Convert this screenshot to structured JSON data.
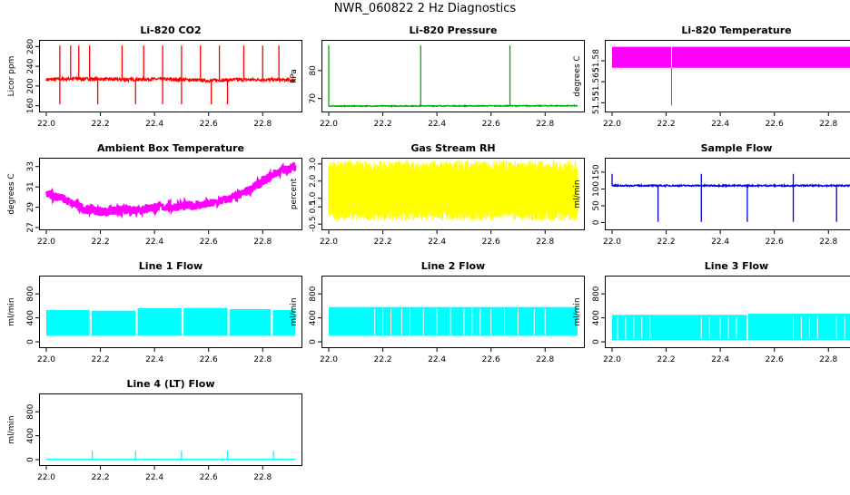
{
  "page": {
    "title": "NWR_060822  2 Hz Diagnostics"
  },
  "chart_data": [
    {
      "type": "line",
      "title": "Li-820 CO2",
      "ylabel": "Licor ppm",
      "color": "#ff0000",
      "xlim": [
        22.0,
        22.92
      ],
      "ylim": [
        152,
        288
      ],
      "xticks": [
        22.0,
        22.2,
        22.4,
        22.6,
        22.8
      ],
      "yticks": [
        160,
        200,
        240,
        280
      ],
      "xticklabels": [
        "22.0",
        "22.2",
        "22.4",
        "22.6",
        "22.8"
      ],
      "yticklabels": [
        "160",
        "200",
        "240",
        "280"
      ],
      "series": [
        {
          "name": "CO2",
          "baseline_points": [
            [
              22.0,
              213
            ],
            [
              22.1,
              215
            ],
            [
              22.2,
              214
            ],
            [
              22.3,
              213
            ],
            [
              22.4,
              214
            ],
            [
              22.5,
              213
            ],
            [
              22.6,
              211
            ],
            [
              22.7,
              213
            ],
            [
              22.8,
              213
            ],
            [
              22.9,
              212
            ]
          ],
          "noise": 3,
          "spikes_up": [
            22.05,
            22.09,
            22.12,
            22.16,
            22.28,
            22.36,
            22.43,
            22.5,
            22.57,
            22.64,
            22.73,
            22.8,
            22.86
          ],
          "spike_up_value": 282,
          "spikes_down": [
            22.05,
            22.19,
            22.33,
            22.43,
            22.5,
            22.61,
            22.67
          ],
          "spike_down_value": 163
        }
      ]
    },
    {
      "type": "line",
      "title": "Li-820 Pressure",
      "ylabel": "kPa",
      "color": "#00aa00",
      "xlim": [
        22.0,
        22.92
      ],
      "ylim": [
        66,
        90
      ],
      "xticks": [
        22.0,
        22.2,
        22.4,
        22.6,
        22.8
      ],
      "yticks": [
        70,
        80
      ],
      "xticklabels": [
        "22.0",
        "22.2",
        "22.4",
        "22.6",
        "22.8"
      ],
      "yticklabels": [
        "70",
        "80"
      ],
      "series": [
        {
          "name": "Pressure",
          "baseline_points": [
            [
              22.0,
              67.3
            ],
            [
              22.92,
              67.4
            ]
          ],
          "noise": 0.15,
          "spikes_up": [
            22.0,
            22.34,
            22.67
          ],
          "spike_up_value": 89
        }
      ]
    },
    {
      "type": "area",
      "title": "Li-820 Temperature",
      "ylabel": "degrees C",
      "color": "#ff00ff",
      "xlim": [
        22.0,
        22.92
      ],
      "ylim": [
        51.545,
        51.593
      ],
      "xticks": [
        22.0,
        22.2,
        22.4,
        22.6,
        22.8
      ],
      "yticks": [
        51.55,
        51.565,
        51.58
      ],
      "xticklabels": [
        "22.0",
        "22.2",
        "22.4",
        "22.6",
        "22.8"
      ],
      "yticklabels": [
        "51.55",
        "51.565",
        "51.58"
      ],
      "series": [
        {
          "name": "Temperature",
          "band": [
            51.575,
            51.59
          ],
          "gap_at": 22.22,
          "spike_down_at": 22.22,
          "spike_down_value": 51.548
        }
      ]
    },
    {
      "type": "line",
      "title": "Ambient Box Temperature",
      "ylabel": "degrees C",
      "color": "#ff00ff",
      "xlim": [
        22.0,
        22.92
      ],
      "ylim": [
        27,
        33.6
      ],
      "xticks": [
        22.0,
        22.2,
        22.4,
        22.6,
        22.8
      ],
      "yticks": [
        27,
        29,
        31,
        33
      ],
      "xticklabels": [
        "22.0",
        "22.2",
        "22.4",
        "22.6",
        "22.8"
      ],
      "yticklabels": [
        "27",
        "29",
        "31",
        "33"
      ],
      "series": [
        {
          "name": "Ambient",
          "baseline_points": [
            [
              22.0,
              30.3
            ],
            [
              22.05,
              30.0
            ],
            [
              22.1,
              29.3
            ],
            [
              22.15,
              28.8
            ],
            [
              22.2,
              28.6
            ],
            [
              22.3,
              28.7
            ],
            [
              22.4,
              29.0
            ],
            [
              22.5,
              29.1
            ],
            [
              22.6,
              29.3
            ],
            [
              22.7,
              30.0
            ],
            [
              22.75,
              30.7
            ],
            [
              22.8,
              31.5
            ],
            [
              22.85,
              32.4
            ],
            [
              22.92,
              33.0
            ]
          ],
          "noise": 0.45
        }
      ]
    },
    {
      "type": "area",
      "title": "Gas Stream RH",
      "ylabel": "percent",
      "color": "#ffff00",
      "xlim": [
        22.0,
        22.92
      ],
      "ylim": [
        -0.7,
        3.2
      ],
      "xticks": [
        22.0,
        22.2,
        22.4,
        22.6,
        22.8
      ],
      "yticks": [
        -0.5,
        0.5,
        1.0,
        2.0,
        3.0
      ],
      "xticklabels": [
        "22.0",
        "22.2",
        "22.4",
        "22.6",
        "22.8"
      ],
      "yticklabels": [
        "-0.5",
        "0.5",
        "1.0",
        "2.0",
        "3.0"
      ],
      "series": [
        {
          "name": "RH",
          "band": [
            0.3,
            2.6
          ],
          "noise": 0.5
        }
      ]
    },
    {
      "type": "line",
      "title": "Sample Flow",
      "ylabel": "ml/min",
      "color": "#0000dd",
      "xlim": [
        22.0,
        22.92
      ],
      "ylim": [
        -15,
        185
      ],
      "xticks": [
        22.0,
        22.2,
        22.4,
        22.6,
        22.8
      ],
      "yticks": [
        0,
        50,
        100,
        150
      ],
      "xticklabels": [
        "22.0",
        "22.2",
        "22.4",
        "22.6",
        "22.8"
      ],
      "yticklabels": [
        "0",
        "50",
        "100",
        "150"
      ],
      "series": [
        {
          "name": "Sample Flow",
          "baseline_points": [
            [
              22.0,
              110
            ],
            [
              22.92,
              110
            ]
          ],
          "noise": 2,
          "spikes_down": [
            22.17,
            22.33,
            22.5,
            22.67,
            22.83
          ],
          "spike_down_value": 2,
          "spikes_up": [
            22.0,
            22.33,
            22.67
          ],
          "spike_up_value": 145
        }
      ]
    },
    {
      "type": "area",
      "title": "Line 1 Flow",
      "ylabel": "ml/min",
      "color": "#00ffff",
      "xlim": [
        22.0,
        22.92
      ],
      "ylim": [
        -60,
        1060
      ],
      "xticks": [
        22.0,
        22.2,
        22.4,
        22.6,
        22.8
      ],
      "yticks": [
        0,
        400,
        800
      ],
      "xticklabels": [
        "22.0",
        "22.2",
        "22.4",
        "22.6",
        "22.8"
      ],
      "yticklabels": [
        "0",
        "400",
        "800"
      ],
      "series": [
        {
          "name": "Line 1",
          "segments": [
            [
              22.0,
              22.16,
              530
            ],
            [
              22.165,
              22.33,
              520
            ],
            [
              22.335,
              22.5,
              560
            ],
            [
              22.505,
              22.67,
              565
            ],
            [
              22.675,
              22.83,
              545
            ],
            [
              22.835,
              22.92,
              530
            ]
          ],
          "floor": 100
        }
      ]
    },
    {
      "type": "area",
      "title": "Line 2 Flow",
      "ylabel": "ml/min",
      "color": "#00ffff",
      "xlim": [
        22.0,
        22.92
      ],
      "ylim": [
        -60,
        1060
      ],
      "xticks": [
        22.0,
        22.2,
        22.4,
        22.6,
        22.8
      ],
      "yticks": [
        0,
        400,
        800
      ],
      "xticklabels": [
        "22.0",
        "22.2",
        "22.4",
        "22.6",
        "22.8"
      ],
      "yticklabels": [
        "0",
        "400",
        "800"
      ],
      "series": [
        {
          "name": "Line 2",
          "segments": [
            [
              22.0,
              22.92,
              580
            ]
          ],
          "floor": 100,
          "dips": [
            22.17,
            22.2,
            22.23,
            22.27,
            22.3,
            22.35,
            22.4,
            22.45,
            22.5,
            22.53,
            22.56,
            22.6,
            22.65,
            22.7,
            22.76,
            22.8
          ]
        }
      ]
    },
    {
      "type": "area",
      "title": "Line 3 Flow",
      "ylabel": "ml/min",
      "color": "#00ffff",
      "xlim": [
        22.0,
        22.92
      ],
      "ylim": [
        -60,
        1060
      ],
      "xticks": [
        22.0,
        22.2,
        22.4,
        22.6,
        22.8
      ],
      "yticks": [
        0,
        400,
        800
      ],
      "xticklabels": [
        "22.0",
        "22.2",
        "22.4",
        "22.6",
        "22.8"
      ],
      "yticklabels": [
        "0",
        "400",
        "800"
      ],
      "series": [
        {
          "name": "Line 3",
          "segments": [
            [
              22.0,
              22.5,
              450
            ],
            [
              22.5,
              22.92,
              470
            ]
          ],
          "floor": 30,
          "dips": [
            22.02,
            22.05,
            22.08,
            22.11,
            22.14,
            22.33,
            22.36,
            22.4,
            22.43,
            22.46,
            22.5,
            22.67,
            22.7,
            22.73,
            22.76,
            22.83,
            22.86
          ]
        }
      ]
    },
    {
      "type": "line",
      "title": "Line 4 (LT) Flow",
      "ylabel": "ml/min",
      "color": "#00ffff",
      "xlim": [
        22.0,
        22.92
      ],
      "ylim": [
        -60,
        1060
      ],
      "xticks": [
        22.0,
        22.2,
        22.4,
        22.6,
        22.8
      ],
      "yticks": [
        0,
        400,
        800
      ],
      "xticklabels": [
        "22.0",
        "22.2",
        "22.4",
        "22.6",
        "22.8"
      ],
      "yticklabels": [
        "0",
        "400",
        "800"
      ],
      "series": [
        {
          "name": "Line 4",
          "baseline_points": [
            [
              22.0,
              5
            ],
            [
              22.92,
              5
            ]
          ],
          "noise": 3,
          "spikes_up": [
            22.17,
            22.33,
            22.5,
            22.67,
            22.84
          ],
          "spike_up_value": 150
        }
      ]
    }
  ]
}
